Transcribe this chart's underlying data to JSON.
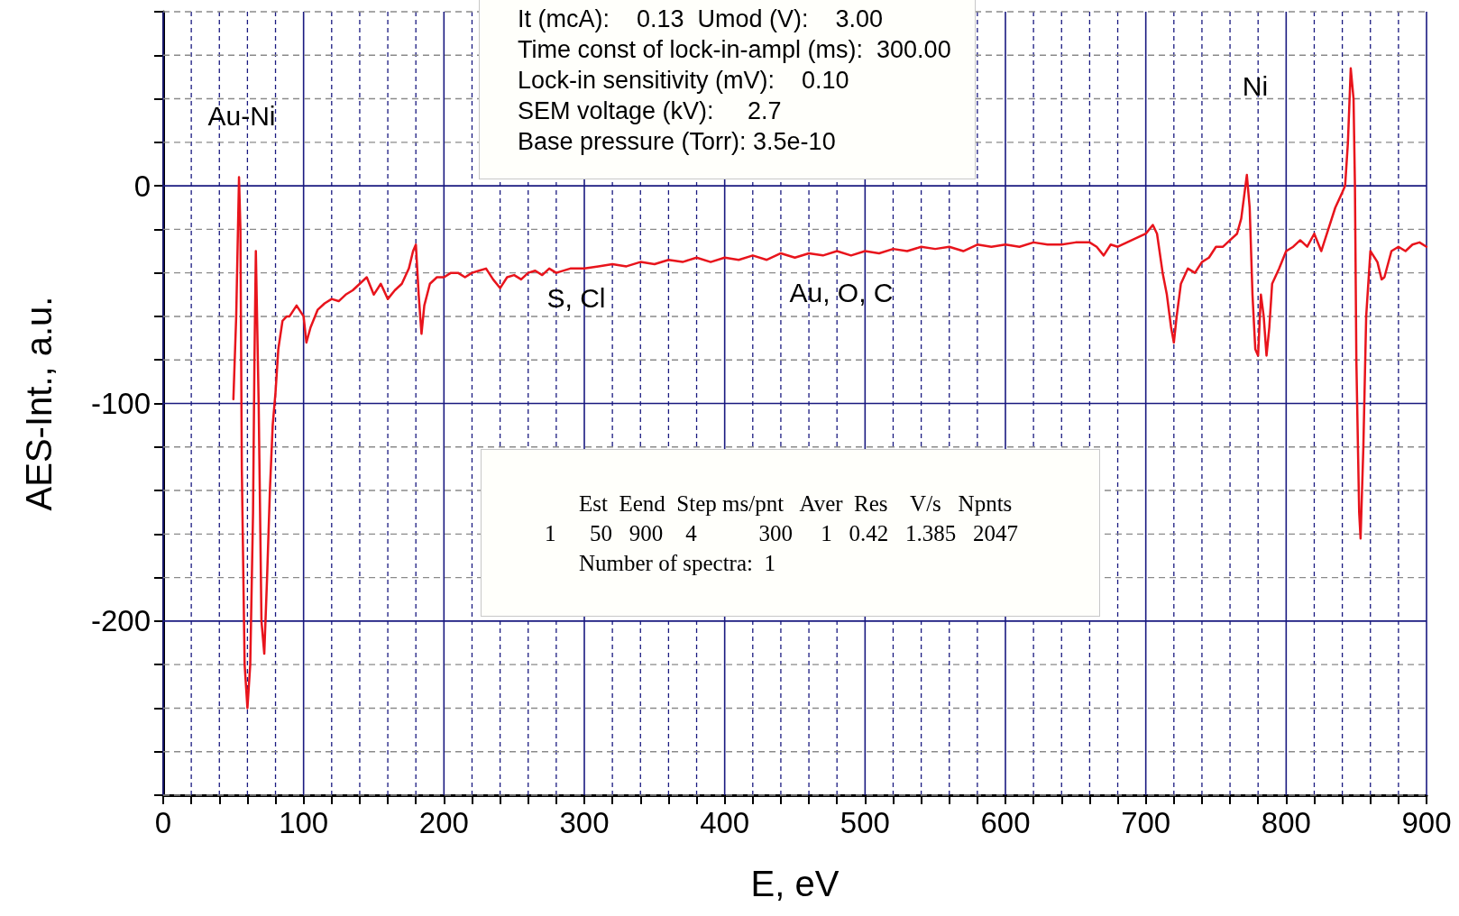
{
  "chart_data": {
    "type": "line",
    "xlabel": "E, eV",
    "ylabel": "AES-Int., a.u.",
    "xlim": [
      0,
      900
    ],
    "ylim": [
      -280,
      80
    ],
    "xticks": [
      0,
      {
        "value": 20,
        "label": null
      },
      {
        "value": 40,
        "label": null
      },
      {
        "value": 60,
        "label": null
      },
      {
        "value": 80,
        "label": null
      },
      100,
      {
        "value": 120,
        "label": null
      },
      {
        "value": 140,
        "label": null
      },
      {
        "value": 160,
        "label": null
      },
      {
        "value": 180,
        "label": null
      },
      200,
      {
        "value": 220,
        "label": null
      },
      {
        "value": 240,
        "label": null
      },
      {
        "value": 260,
        "label": null
      },
      {
        "value": 280,
        "label": null
      },
      300,
      {
        "value": 320,
        "label": null
      },
      {
        "value": 340,
        "label": null
      },
      {
        "value": 360,
        "label": null
      },
      {
        "value": 380,
        "label": null
      },
      400,
      {
        "value": 420,
        "label": null
      },
      {
        "value": 440,
        "label": null
      },
      {
        "value": 460,
        "label": null
      },
      {
        "value": 480,
        "label": null
      },
      500,
      {
        "value": 520,
        "label": null
      },
      {
        "value": 540,
        "label": null
      },
      {
        "value": 560,
        "label": null
      },
      {
        "value": 580,
        "label": null
      },
      600,
      {
        "value": 620,
        "label": null
      },
      {
        "value": 640,
        "label": null
      },
      {
        "value": 660,
        "label": null
      },
      {
        "value": 680,
        "label": null
      },
      700,
      {
        "value": 720,
        "label": null
      },
      {
        "value": 740,
        "label": null
      },
      {
        "value": 760,
        "label": null
      },
      {
        "value": 780,
        "label": null
      },
      800,
      {
        "value": 820,
        "label": null
      },
      {
        "value": 840,
        "label": null
      },
      {
        "value": 860,
        "label": null
      },
      {
        "value": 880,
        "label": null
      },
      900
    ],
    "yticks": [
      {
        "value": -280,
        "label": null
      },
      {
        "value": -260,
        "label": null
      },
      {
        "value": -240,
        "label": null
      },
      {
        "value": -220,
        "label": null
      },
      -200,
      {
        "value": -180,
        "label": null
      },
      {
        "value": -160,
        "label": null
      },
      {
        "value": -140,
        "label": null
      },
      {
        "value": -120,
        "label": null
      },
      -100,
      {
        "value": -80,
        "label": null
      },
      {
        "value": -60,
        "label": null
      },
      {
        "value": -40,
        "label": null
      },
      {
        "value": -20,
        "label": null
      },
      0,
      {
        "value": 20,
        "label": null
      },
      {
        "value": 40,
        "label": null
      },
      {
        "value": 60,
        "label": null
      },
      {
        "value": 80,
        "label": null
      }
    ],
    "grid": true,
    "marker": "none",
    "line_style": "solid",
    "series": [
      {
        "color": "#e8141c",
        "x": [
          50,
          52,
          54,
          55,
          56,
          58,
          60,
          62,
          64,
          65,
          66,
          68,
          70,
          72,
          74,
          76,
          78,
          80,
          82,
          85,
          88,
          90,
          95,
          100,
          102,
          105,
          110,
          115,
          120,
          125,
          130,
          135,
          140,
          145,
          150,
          155,
          160,
          165,
          170,
          175,
          178,
          180,
          182,
          184,
          186,
          190,
          195,
          200,
          205,
          210,
          215,
          220,
          225,
          230,
          235,
          240,
          245,
          250,
          255,
          260,
          265,
          270,
          275,
          280,
          290,
          300,
          310,
          320,
          330,
          340,
          350,
          360,
          370,
          380,
          390,
          400,
          410,
          420,
          430,
          440,
          450,
          460,
          470,
          480,
          490,
          500,
          510,
          520,
          530,
          540,
          550,
          560,
          570,
          580,
          590,
          600,
          610,
          620,
          630,
          640,
          650,
          660,
          665,
          670,
          675,
          680,
          690,
          700,
          705,
          708,
          712,
          715,
          718,
          720,
          722,
          725,
          730,
          735,
          740,
          745,
          750,
          755,
          760,
          765,
          768,
          770,
          772,
          774,
          776,
          778,
          780,
          782,
          784,
          786,
          788,
          790,
          795,
          800,
          805,
          810,
          815,
          820,
          825,
          830,
          835,
          840,
          842,
          844,
          846,
          848,
          849,
          850,
          852,
          853,
          855,
          857,
          860,
          865,
          868,
          870,
          875,
          880,
          885,
          890,
          895,
          900
        ],
        "values": [
          -98,
          -60,
          4,
          -20,
          -130,
          -220,
          -240,
          -220,
          -150,
          -80,
          -30,
          -100,
          -200,
          -215,
          -180,
          -140,
          -110,
          -95,
          -75,
          -62,
          -60,
          -60,
          -55,
          -60,
          -72,
          -65,
          -57,
          -54,
          -52,
          -53,
          -50,
          -48,
          -45,
          -42,
          -50,
          -45,
          -52,
          -48,
          -45,
          -38,
          -30,
          -27,
          -50,
          -68,
          -55,
          -45,
          -42,
          -42,
          -40,
          -40,
          -42,
          -40,
          -39,
          -38,
          -43,
          -47,
          -42,
          -41,
          -43,
          -40,
          -39,
          -41,
          -38,
          -40,
          -38,
          -38,
          -37,
          -36,
          -37,
          -35,
          -36,
          -34,
          -35,
          -33,
          -35,
          -33,
          -34,
          -32,
          -34,
          -31,
          -33,
          -31,
          -32,
          -30,
          -32,
          -30,
          -31,
          -29,
          -30,
          -28,
          -29,
          -28,
          -30,
          -27,
          -28,
          -27,
          -28,
          -26,
          -27,
          -27,
          -26,
          -26,
          -28,
          -32,
          -27,
          -28,
          -25,
          -22,
          -18,
          -22,
          -40,
          -50,
          -65,
          -72,
          -60,
          -45,
          -38,
          -40,
          -35,
          -33,
          -28,
          -28,
          -25,
          -22,
          -15,
          -5,
          5,
          -10,
          -50,
          -75,
          -78,
          -50,
          -60,
          -78,
          -65,
          -45,
          -38,
          -30,
          -28,
          -25,
          -28,
          -22,
          -30,
          -20,
          -10,
          -3,
          0,
          20,
          54,
          40,
          0,
          -80,
          -150,
          -162,
          -120,
          -60,
          -30,
          -35,
          -43,
          -42,
          -30,
          -28,
          -30,
          -27,
          -26,
          -28
        ]
      }
    ],
    "annotations": [
      "Au-Ni",
      "S, Cl",
      "Au, O, C",
      "Ni",
      "It (mcA):    0.13  Umod (V):    3.00",
      "Time const of lock-in-ampl (ms):  300.00",
      "Lock-in sensitivity (mV):    0.10",
      "SEM voltage (kV):     2.7",
      "Base pressure (Torr): 3.5e-10",
      "Est  Eend  Step ms/pnt   Aver  Res    V/s   Npnts",
      "1      50   900    4           300     1   0.42   1.385   2047",
      "Number of spectra:  1"
    ]
  }
}
